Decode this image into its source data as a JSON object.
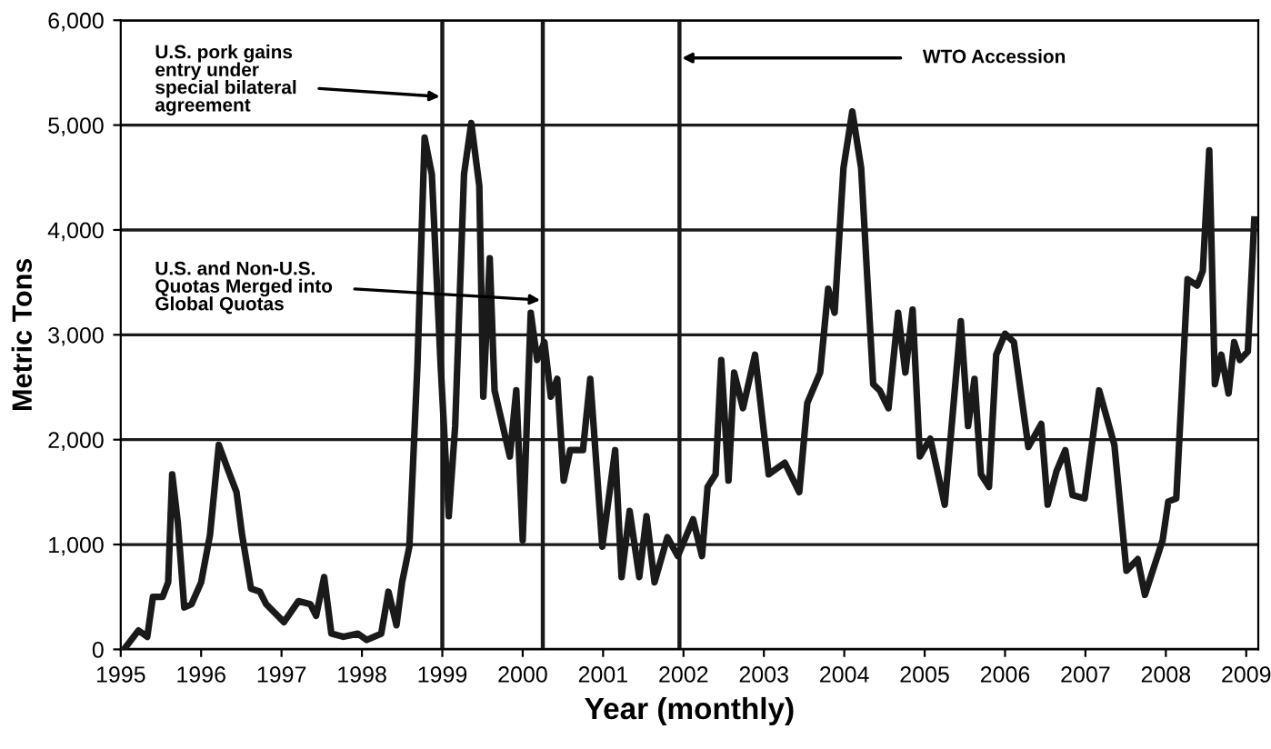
{
  "chart_data": {
    "type": "line",
    "xlabel": "Year (monthly)",
    "ylabel": "Metric Tons",
    "series": [
      {
        "color": "#1a1a1a",
        "x": [
          1995.04,
          1995.22,
          1995.33,
          1995.4,
          1995.52,
          1995.59,
          1995.64,
          1995.71,
          1995.79,
          1995.88,
          1996.0,
          1996.11,
          1996.22,
          1996.33,
          1996.44,
          1996.51,
          1996.62,
          1996.73,
          1996.81,
          1997.03,
          1997.21,
          1997.36,
          1997.43,
          1997.53,
          1997.62,
          1997.77,
          1997.95,
          1998.06,
          1998.24,
          1998.33,
          1998.43,
          1998.5,
          1998.59,
          1998.69,
          1998.78,
          1998.87,
          1998.98,
          1999.08,
          1999.16,
          1999.27,
          1999.36,
          1999.46,
          1999.51,
          1999.59,
          1999.65,
          1999.84,
          1999.92,
          2000.0,
          2000.1,
          2000.18,
          2000.27,
          2000.35,
          2000.43,
          2000.51,
          2000.59,
          2000.75,
          2000.84,
          2000.99,
          2001.15,
          2001.23,
          2001.33,
          2001.45,
          2001.54,
          2001.64,
          2001.8,
          2001.93,
          2002.12,
          2002.23,
          2002.3,
          2002.4,
          2002.47,
          2002.56,
          2002.63,
          2002.74,
          2002.89,
          2003.06,
          2003.26,
          2003.44,
          2003.54,
          2003.7,
          2003.8,
          2003.88,
          2003.99,
          2004.1,
          2004.21,
          2004.36,
          2004.44,
          2004.55,
          2004.67,
          2004.76,
          2004.85,
          2004.94,
          2005.07,
          2005.25,
          2005.45,
          2005.54,
          2005.62,
          2005.7,
          2005.8,
          2005.89,
          2006.0,
          2006.11,
          2006.29,
          2006.45,
          2006.53,
          2006.64,
          2006.75,
          2006.84,
          2006.99,
          2007.17,
          2007.36,
          2007.51,
          2007.65,
          2007.74,
          2007.96,
          2008.03,
          2008.13,
          2008.27,
          2008.39,
          2008.46,
          2008.54,
          2008.61,
          2008.69,
          2008.78,
          2008.85,
          2008.92,
          2009.02,
          2009.1
        ],
        "values": [
          0,
          180,
          120,
          500,
          500,
          640,
          1670,
          1210,
          400,
          430,
          640,
          1090,
          1950,
          1720,
          1500,
          1090,
          580,
          550,
          430,
          260,
          460,
          430,
          320,
          690,
          150,
          120,
          150,
          90,
          150,
          550,
          230,
          640,
          980,
          2700,
          4880,
          4530,
          2700,
          1270,
          2130,
          4530,
          5020,
          4420,
          2410,
          3730,
          2470,
          1840,
          2470,
          1040,
          3210,
          2760,
          2930,
          2410,
          2580,
          1610,
          1900,
          1900,
          2580,
          980,
          1900,
          690,
          1320,
          690,
          1270,
          640,
          1070,
          890,
          1240,
          890,
          1550,
          1670,
          2760,
          1610,
          2640,
          2300,
          2810,
          1670,
          1780,
          1500,
          2350,
          2640,
          3440,
          3210,
          4590,
          5130,
          4590,
          2530,
          2470,
          2300,
          3210,
          2640,
          3240,
          1840,
          2010,
          1380,
          3130,
          2130,
          2580,
          1670,
          1550,
          2810,
          3010,
          2930,
          1930,
          2150,
          1380,
          1700,
          1900,
          1470,
          1440,
          2470,
          1950,
          750,
          860,
          520,
          1040,
          1410,
          1440,
          3530,
          3470,
          3610,
          4760,
          2530,
          2810,
          2440,
          2930,
          2760,
          2840,
          4100
        ]
      }
    ],
    "xlim": [
      1995,
      2009.15
    ],
    "xticks": [
      1995,
      1996,
      1997,
      1998,
      1999,
      2000,
      2001,
      2002,
      2003,
      2004,
      2005,
      2006,
      2007,
      2008,
      2009
    ],
    "ylim": [
      0,
      6000
    ],
    "yticks": [
      0,
      {
        "value": 1000,
        "label": "1,000"
      },
      {
        "value": 2000,
        "label": "2,000"
      },
      {
        "value": 3000,
        "label": "3,000"
      },
      {
        "value": 4000,
        "label": "4,000"
      },
      {
        "value": 5000,
        "label": "5,000"
      },
      {
        "value": 6000,
        "label": "6,000"
      }
    ],
    "grid": "y",
    "marker": "none",
    "line_style": "solid",
    "legend": false,
    "ref_lines": [
      {
        "axis": "x",
        "value": 1999,
        "color": "#1a1a1a"
      },
      {
        "axis": "x",
        "value": 2000.25,
        "color": "#1a1a1a"
      },
      {
        "axis": "x",
        "value": 2001.95,
        "color": "#1a1a1a"
      }
    ],
    "annotations": [
      {
        "text": "U.S. pork gains\nentry under\nspecial bilateral\nagreement",
        "x": 1999,
        "y": 5270
      },
      {
        "text": "U.S. and Non-U.S.\nQuotas Merged into\nGlobal Quotas",
        "x": 2000.25,
        "y": 3330
      },
      {
        "text": "WTO Accession",
        "x": 2001.95,
        "y": 5640
      }
    ]
  }
}
